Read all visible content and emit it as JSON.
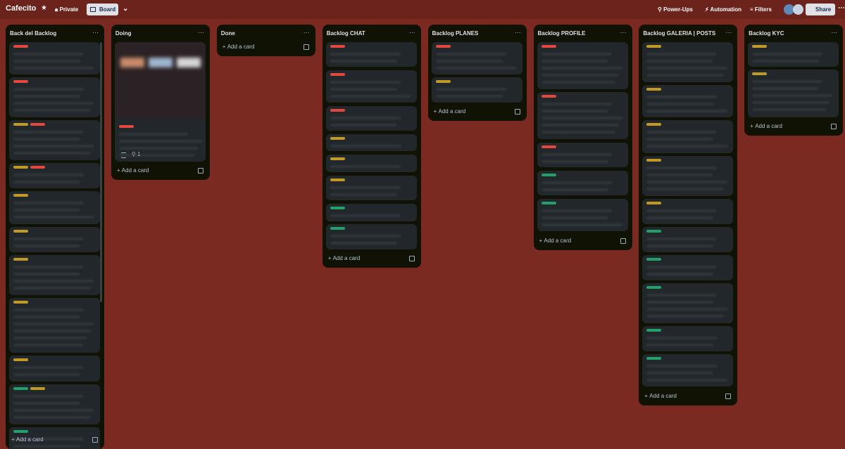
{
  "header": {
    "board_name": "Cafecito",
    "visibility": "Private",
    "view": "Board",
    "power_ups": "Power-Ups",
    "automation": "Automation",
    "filters": "Filters",
    "share": "Share"
  },
  "lists": [
    {
      "title": "Back del Backlog",
      "add_card": "Add a card"
    },
    {
      "title": "Doing",
      "add_card": "Add a card",
      "attachment_count": 1
    },
    {
      "title": "Done",
      "add_card": "Add a card"
    },
    {
      "title": "Backlog CHAT",
      "add_card": "Add a card"
    },
    {
      "title": "Backlog PLANES",
      "add_card": "Add a card"
    },
    {
      "title": "Backlog PROFILE",
      "add_card": "Add a card"
    },
    {
      "title": "Backlog GALERIA | POSTS",
      "add_card": "Add a card"
    },
    {
      "title": "Backlog KYC",
      "add_card": "Add a card"
    }
  ]
}
